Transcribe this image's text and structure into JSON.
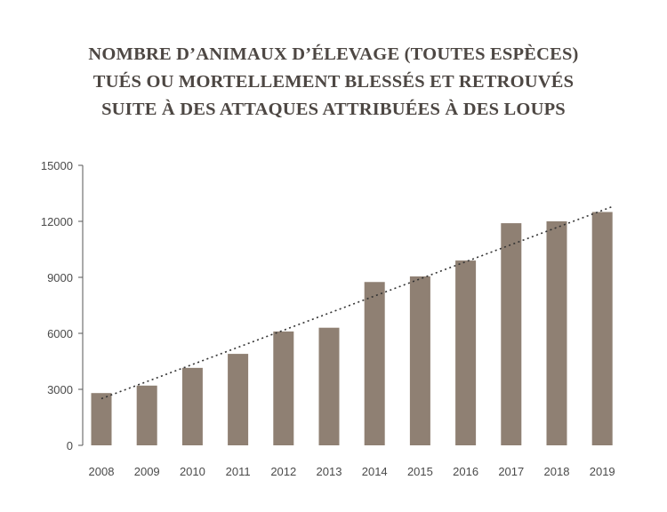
{
  "chart_data": {
    "type": "bar",
    "title": [
      "NOMBRE D’ANIMAUX D’ÉLEVAGE (TOUTES ESPÈCES)",
      "TUÉS OU MORTELLEMENT BLESSÉS ET RETROUVÉS",
      "SUITE À DES ATTAQUES ATTRIBUÉES À DES LOUPS"
    ],
    "categories": [
      "2008",
      "2009",
      "2010",
      "2011",
      "2012",
      "2013",
      "2014",
      "2015",
      "2016",
      "2017",
      "2018",
      "2019"
    ],
    "values": [
      2800,
      3200,
      4150,
      4900,
      6100,
      6300,
      8750,
      9050,
      9900,
      11900,
      12000,
      12500
    ],
    "ylim": [
      0,
      15000
    ],
    "yticks": [
      0,
      3000,
      6000,
      9000,
      12000,
      15000
    ],
    "ytick_labels": [
      "0",
      "3000",
      "6000",
      "9000",
      "12000",
      "15000"
    ],
    "trendline": {
      "style": "dotted",
      "from": [
        0,
        2500
      ],
      "to": [
        11,
        12800
      ]
    },
    "colors": {
      "bar": "#8f8073",
      "title": "#4d4743",
      "axis": "#555555",
      "trend": "#333333"
    },
    "grid": false,
    "xlabel": "",
    "ylabel": ""
  }
}
